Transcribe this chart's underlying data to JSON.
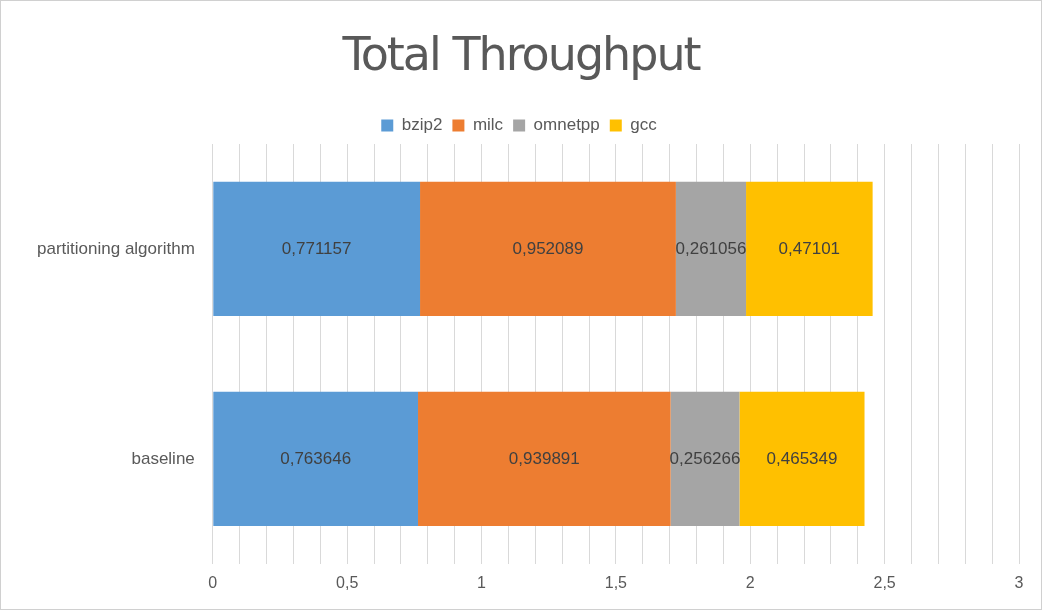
{
  "chart_data": {
    "type": "bar",
    "title": "Total Throughput",
    "orientation": "horizontal",
    "stacked": true,
    "categories": [
      "partitioning algorithm",
      "baseline"
    ],
    "series": [
      {
        "name": "bzip2",
        "color": "#5b9bd5",
        "values": [
          0.771157,
          0.763646
        ],
        "value_labels": [
          "0,771157",
          "0,763646"
        ]
      },
      {
        "name": "milc",
        "color": "#ed7d31",
        "values": [
          0.952089,
          0.939891
        ],
        "value_labels": [
          "0,952089",
          "0,939891"
        ]
      },
      {
        "name": "omnetpp",
        "color": "#a5a5a5",
        "values": [
          0.261056,
          0.256266
        ],
        "value_labels": [
          "0,261056",
          "0,256266"
        ]
      },
      {
        "name": "gcc",
        "color": "#ffc000",
        "values": [
          0.47101,
          0.465349
        ],
        "value_labels": [
          "0,47101",
          "0,465349"
        ]
      }
    ],
    "xlim": [
      0,
      3
    ],
    "xticks": [
      0,
      {
        "value": 0.1,
        "label": null
      },
      {
        "value": 0.2,
        "label": null
      },
      {
        "value": 0.3,
        "label": null
      },
      {
        "value": 0.4,
        "label": null
      },
      {
        "value": 0.5,
        "label": "0,5"
      },
      {
        "value": 0.6,
        "label": null
      },
      {
        "value": 0.7,
        "label": null
      },
      {
        "value": 0.8,
        "label": null
      },
      {
        "value": 0.9,
        "label": null
      },
      1,
      {
        "value": 1.1,
        "label": null
      },
      {
        "value": 1.2,
        "label": null
      },
      {
        "value": 1.3,
        "label": null
      },
      {
        "value": 1.4,
        "label": null
      },
      {
        "value": 1.5,
        "label": "1,5"
      },
      {
        "value": 1.6,
        "label": null
      },
      {
        "value": 1.7,
        "label": null
      },
      {
        "value": 1.8,
        "label": null
      },
      {
        "value": 1.9,
        "label": null
      },
      2,
      {
        "value": 2.1,
        "label": null
      },
      {
        "value": 2.2,
        "label": null
      },
      {
        "value": 2.3,
        "label": null
      },
      {
        "value": 2.4,
        "label": null
      },
      {
        "value": 2.5,
        "label": "2,5"
      },
      {
        "value": 2.6,
        "label": null
      },
      {
        "value": 2.7,
        "label": null
      },
      {
        "value": 2.8,
        "label": null
      },
      {
        "value": 2.9,
        "label": null
      },
      3
    ],
    "grid": "x",
    "legend": "top"
  }
}
